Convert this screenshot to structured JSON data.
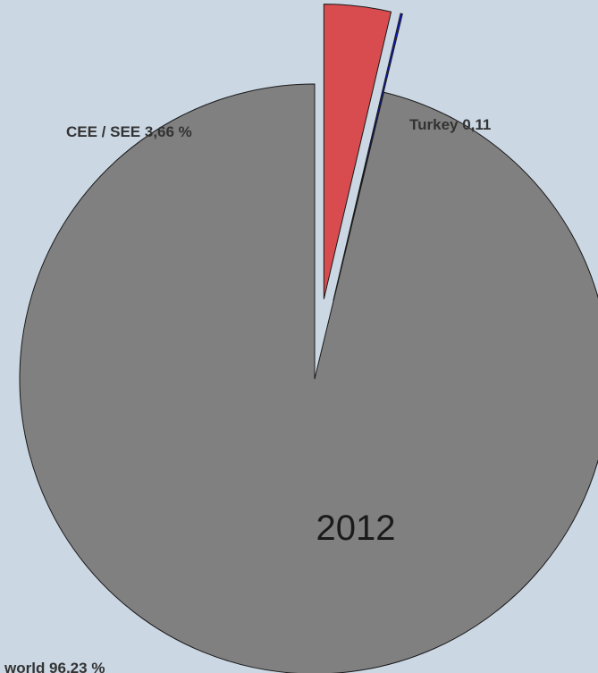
{
  "chart_data": {
    "type": "pie",
    "title": "2012",
    "slices": [
      {
        "label": "world 96,23 %",
        "name": "world",
        "value": 96.23,
        "color": "#808080",
        "exploded": false
      },
      {
        "label": "CEE / SEE 3,66 %",
        "name": "CEE / SEE",
        "value": 3.66,
        "color": "#d84b4e",
        "exploded": true
      },
      {
        "label": "Turkey 0,11",
        "name": "Turkey",
        "value": 0.11,
        "color": "#1219d6",
        "exploded": true
      }
    ],
    "legend": "none",
    "grid": false
  }
}
